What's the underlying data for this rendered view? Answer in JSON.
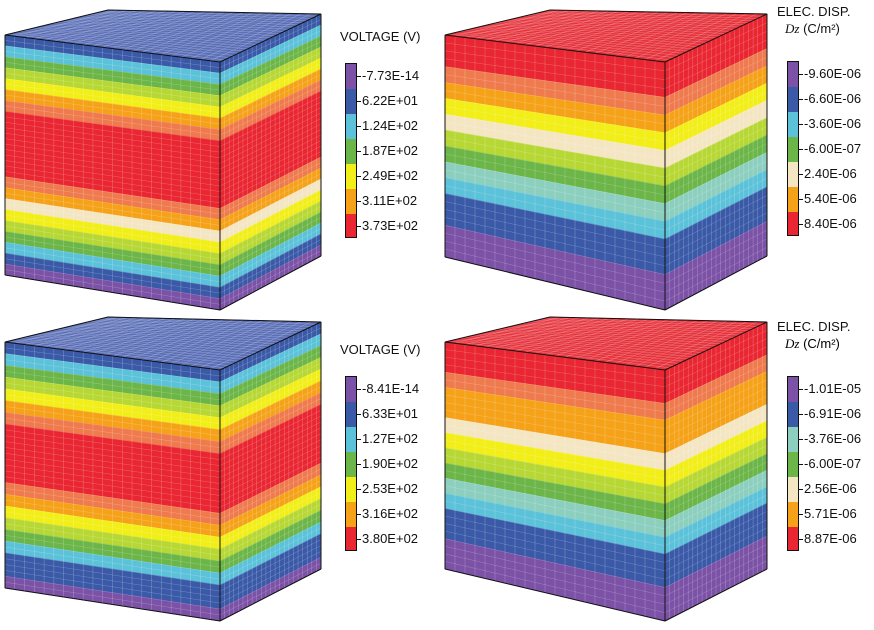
{
  "colors": {
    "purple": "#7b52a6",
    "blue": "#3a5aa8",
    "cyan": "#5bc2d9",
    "teal": "#8ccfbf",
    "green": "#6cb548",
    "lime": "#b7d834",
    "yellow": "#f2ee17",
    "cream": "#f4e6c3",
    "orange": "#f5a219",
    "salmon": "#ef7a4d",
    "red": "#e92631",
    "top_blue": "#5b6fb7",
    "top_red": "#e6333c"
  },
  "panels": [
    {
      "id": "voltage-1",
      "legend": {
        "title_line1": "VOLTAGE (V)",
        "title_line2": "",
        "labels": [
          "-7.73E-14",
          "6.22E+01",
          "1.24E+02",
          "1.87E+02",
          "2.49E+02",
          "3.11E+02",
          "3.73E+02"
        ],
        "swatches": [
          "purple",
          "blue",
          "cyan",
          "green",
          "yellow",
          "orange",
          "red"
        ]
      },
      "cube_top_color": "top_blue",
      "cube_stripes": [
        "blue",
        "cyan",
        "green",
        "lime",
        "yellow",
        "orange",
        "salmon",
        "red",
        "red",
        "red",
        "red",
        "red",
        "red",
        "salmon",
        "orange",
        "cream",
        "yellow",
        "lime",
        "green",
        "cyan",
        "blue",
        "purple"
      ]
    },
    {
      "id": "elecdisp-1",
      "legend": {
        "title_line1": "ELEC. DISP.",
        "title_dz": "Dz",
        "title_unit": " (C/m²)",
        "labels": [
          "-9.60E-06",
          "-6.60E-06",
          "-3.60E-06",
          "-6.00E-07",
          "2.40E-06",
          "5.40E-06",
          "8.40E-06"
        ],
        "swatches": [
          "purple",
          "blue",
          "cyan",
          "green",
          "cream",
          "orange",
          "red"
        ]
      },
      "cube_top_color": "top_red",
      "cube_stripes": [
        "red",
        "red",
        "salmon",
        "orange",
        "yellow",
        "cream",
        "lime",
        "green",
        "teal",
        "cyan",
        "blue",
        "blue",
        "purple",
        "purple"
      ]
    },
    {
      "id": "voltage-2",
      "legend": {
        "title_line1": "VOLTAGE (V)",
        "title_line2": "",
        "labels": [
          "-8.41E-14",
          "6.33E+01",
          "1.27E+02",
          "1.90E+02",
          "2.53E+02",
          "3.16E+02",
          "3.80E+02"
        ],
        "swatches": [
          "purple",
          "blue",
          "cyan",
          "green",
          "yellow",
          "orange",
          "red"
        ]
      },
      "cube_top_color": "top_blue",
      "cube_stripes": [
        "blue",
        "cyan",
        "green",
        "lime",
        "yellow",
        "orange",
        "salmon",
        "red",
        "red",
        "red",
        "red",
        "red",
        "salmon",
        "orange",
        "yellow",
        "lime",
        "green",
        "cyan",
        "blue",
        "blue",
        "purple"
      ]
    },
    {
      "id": "elecdisp-2",
      "legend": {
        "title_line1": "ELEC. DISP.",
        "title_dz": "Dz",
        "title_unit": " (C/m²)",
        "labels": [
          "-1.01E-05",
          "-6.91E-06",
          "-3.76E-06",
          "-6.00E-07",
          "2.56E-06",
          "5.71E-06",
          "8.87E-06"
        ],
        "swatches": [
          "purple",
          "blue",
          "teal",
          "green",
          "cream",
          "orange",
          "red"
        ]
      },
      "cube_top_color": "top_red",
      "cube_stripes": [
        "red",
        "red",
        "salmon",
        "orange",
        "orange",
        "cream",
        "yellow",
        "lime",
        "green",
        "teal",
        "cyan",
        "blue",
        "blue",
        "purple",
        "purple"
      ]
    }
  ]
}
